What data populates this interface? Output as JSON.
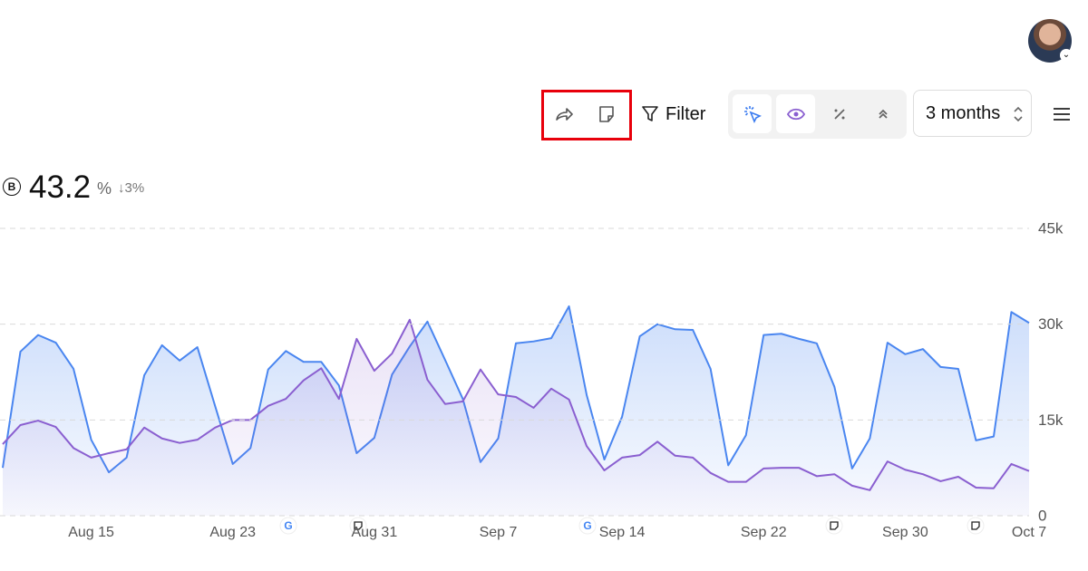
{
  "toolbar": {
    "filter": "Filter",
    "date_range": "3 months"
  },
  "metric": {
    "badge": "B",
    "value": "43.2",
    "unit": "%",
    "change": "↓3%"
  },
  "chart_data": {
    "type": "area",
    "grid": true,
    "categories": [
      null,
      null,
      null,
      null,
      null,
      "Aug 15",
      null,
      null,
      null,
      null,
      null,
      null,
      null,
      "Aug 23",
      null,
      null,
      null,
      null,
      null,
      null,
      null,
      "Aug 31",
      null,
      null,
      null,
      null,
      null,
      null,
      "Sep 7",
      null,
      null,
      null,
      null,
      null,
      null,
      "Sep 14",
      null,
      null,
      null,
      null,
      null,
      null,
      null,
      "Sep 22",
      null,
      null,
      null,
      null,
      null,
      null,
      null,
      "Sep 30",
      null,
      null,
      null,
      null,
      null,
      null,
      "Oct 7"
    ],
    "ylim": [
      0,
      45000
    ],
    "yticks": [
      {
        "value": 0,
        "label": "0"
      },
      {
        "value": 15000,
        "label": "15k"
      },
      {
        "value": 30000,
        "label": "30k"
      },
      {
        "value": 45000,
        "label": "45k"
      }
    ],
    "series": [
      {
        "color": "#4a86f0",
        "values": [
          7500,
          25700,
          28300,
          27100,
          23000,
          11900,
          6800,
          9100,
          22000,
          26700,
          24300,
          26400,
          17200,
          8100,
          10600,
          22900,
          25800,
          24100,
          24100,
          20400,
          9800,
          12200,
          22100,
          26500,
          30400,
          24400,
          18300,
          8400,
          12100,
          27000,
          27300,
          27800,
          32800,
          18900,
          8800,
          15500,
          28100,
          30000,
          29200,
          29100,
          23000,
          7900,
          12600,
          28300,
          28500,
          27700,
          27000,
          20200,
          7400,
          12100,
          27100,
          25300,
          26100,
          23300,
          23000,
          11800,
          12400,
          31900,
          30200
        ]
      },
      {
        "color": "#8a5fd0",
        "values": [
          11200,
          14200,
          14900,
          13900,
          10600,
          9100,
          9800,
          10400,
          13800,
          12100,
          11400,
          11900,
          13800,
          15000,
          15000,
          17200,
          18300,
          21200,
          23100,
          18300,
          27700,
          22700,
          25400,
          30700,
          21300,
          17500,
          17900,
          22900,
          19000,
          18600,
          16900,
          19900,
          18200,
          10900,
          7100,
          9100,
          9500,
          11600,
          9400,
          9100,
          6700,
          5300,
          5300,
          7400,
          7500,
          7500,
          6200,
          6500,
          4700,
          4000,
          8500,
          7200,
          6500,
          5400,
          6100,
          4400,
          4300,
          8100,
          7000
        ]
      }
    ]
  }
}
